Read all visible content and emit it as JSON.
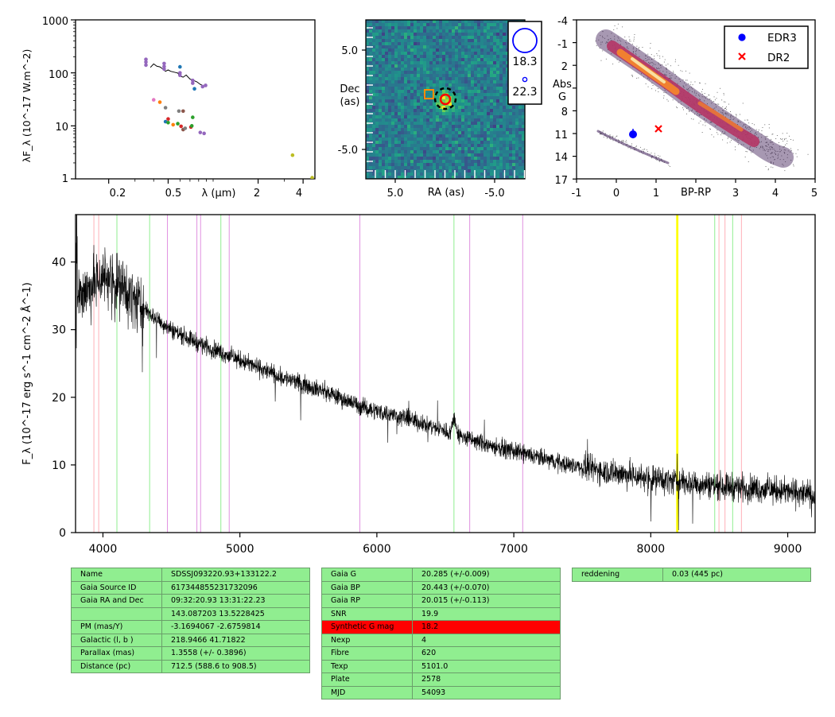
{
  "sed": {
    "ylabel": "λF_λ (10^-17 W.m^-2)",
    "xlabel": "λ (μm)",
    "y_ticks": [
      "1",
      "10",
      "100",
      "1000"
    ],
    "x_ticks": [
      "0.2",
      "0.5",
      "2",
      "4"
    ],
    "xscale": "log",
    "yscale": "log",
    "xlim": [
      0.12,
      4.8
    ],
    "ylim": [
      1,
      1000
    ],
    "model": [
      [
        0.38,
        125
      ],
      [
        0.4,
        130
      ],
      [
        0.42,
        128
      ],
      [
        0.44,
        122
      ],
      [
        0.46,
        118
      ],
      [
        0.48,
        112
      ],
      [
        0.5,
        108
      ],
      [
        0.52,
        106
      ],
      [
        0.55,
        102
      ],
      [
        0.58,
        96
      ],
      [
        0.6,
        92
      ],
      [
        0.63,
        87
      ],
      [
        0.66,
        82
      ],
      [
        0.7,
        76
      ],
      [
        0.74,
        70
      ],
      [
        0.78,
        66
      ],
      [
        0.82,
        62
      ],
      [
        0.86,
        58
      ]
    ],
    "points": [
      {
        "x": 0.355,
        "y": 180,
        "color": "#9467bd"
      },
      {
        "x": 0.355,
        "y": 160,
        "color": "#9467bd"
      },
      {
        "x": 0.355,
        "y": 140,
        "color": "#9467bd"
      },
      {
        "x": 0.47,
        "y": 150,
        "color": "#9467bd"
      },
      {
        "x": 0.47,
        "y": 132,
        "color": "#9467bd"
      },
      {
        "x": 0.47,
        "y": 118,
        "color": "#9467bd"
      },
      {
        "x": 0.6,
        "y": 130,
        "color": "#1f77b4"
      },
      {
        "x": 0.6,
        "y": 100,
        "color": "#9467bd"
      },
      {
        "x": 0.6,
        "y": 90,
        "color": "#9467bd"
      },
      {
        "x": 0.73,
        "y": 72,
        "color": "#9467bd"
      },
      {
        "x": 0.73,
        "y": 64,
        "color": "#9467bd"
      },
      {
        "x": 0.75,
        "y": 50,
        "color": "#1f77b4"
      },
      {
        "x": 0.85,
        "y": 55,
        "color": "#9467bd"
      },
      {
        "x": 0.89,
        "y": 58,
        "color": "#9467bd"
      },
      {
        "x": 0.4,
        "y": 31,
        "color": "#e377c2"
      },
      {
        "x": 0.44,
        "y": 28,
        "color": "#ff7f0e"
      },
      {
        "x": 0.48,
        "y": 22,
        "color": "#7f7f7f"
      },
      {
        "x": 0.59,
        "y": 19,
        "color": "#7f7f7f"
      },
      {
        "x": 0.63,
        "y": 19,
        "color": "#8c564b"
      },
      {
        "x": 0.48,
        "y": 12,
        "color": "#1f77b4"
      },
      {
        "x": 0.5,
        "y": 13.5,
        "color": "#d62728"
      },
      {
        "x": 0.5,
        "y": 11.5,
        "color": "#2ca02c"
      },
      {
        "x": 0.54,
        "y": 10.5,
        "color": "#ff7f0e"
      },
      {
        "x": 0.58,
        "y": 11,
        "color": "#2ca02c"
      },
      {
        "x": 0.61,
        "y": 9.8,
        "color": "#d62728"
      },
      {
        "x": 0.63,
        "y": 8.5,
        "color": "#8c564b"
      },
      {
        "x": 0.65,
        "y": 9,
        "color": "#7f7f7f"
      },
      {
        "x": 0.71,
        "y": 9.5,
        "color": "#d62728"
      },
      {
        "x": 0.72,
        "y": 10,
        "color": "#2ca02c"
      },
      {
        "x": 0.73,
        "y": 14.5,
        "color": "#2ca02c"
      },
      {
        "x": 0.82,
        "y": 7.5,
        "color": "#9467bd"
      },
      {
        "x": 0.87,
        "y": 7.2,
        "color": "#9467bd"
      },
      {
        "x": 3.4,
        "y": 2.8,
        "color": "#bcbd22"
      },
      {
        "x": 4.6,
        "y": 1.05,
        "color": "#bcbd22"
      }
    ]
  },
  "image_panel": {
    "ylabel_line1": "Dec",
    "ylabel_line2": "(as)",
    "xlabel": "RA (as)",
    "y_ticks": [
      "5.0",
      "-5.0"
    ],
    "x_ticks": [
      "5.0",
      "-5.0"
    ],
    "legend_mags": [
      "18.3",
      "22.3"
    ]
  },
  "hr": {
    "ylabel_line1": "Abs",
    "ylabel_line2": "G",
    "xlabel": "BP-RP",
    "y_ticks": [
      "-4",
      "-1",
      "2",
      "5",
      "8",
      "11",
      "14",
      "17"
    ],
    "x_ticks": [
      "-1",
      "0",
      "1",
      "2",
      "3",
      "4",
      "5"
    ],
    "legend": [
      {
        "label": "EDR3",
        "marker": "circle",
        "color": "#0000ff"
      },
      {
        "label": "DR2",
        "marker": "x",
        "color": "#ff0000"
      }
    ],
    "edr3": {
      "bp_rp": 0.43,
      "absg": 11.0
    },
    "dr2": {
      "bp_rp": 1.06,
      "absg": 10.2
    }
  },
  "chart_data": {
    "type": "line",
    "xlabel": "",
    "ylabel": "F_λ (10^-17 erg s^-1 cm^-2 Å^-1)",
    "xlim": [
      3800,
      9200
    ],
    "ylim": [
      0,
      47
    ],
    "x_ticks": [
      "4000",
      "5000",
      "6000",
      "7000",
      "8000",
      "9000"
    ],
    "y_ticks": [
      "0",
      "10",
      "20",
      "30",
      "40"
    ],
    "continuum": [
      [
        3800,
        35
      ],
      [
        3900,
        36
      ],
      [
        4000,
        38
      ],
      [
        4100,
        37
      ],
      [
        4200,
        35
      ],
      [
        4300,
        33
      ],
      [
        4500,
        30
      ],
      [
        4700,
        28
      ],
      [
        5000,
        25.5
      ],
      [
        5300,
        23
      ],
      [
        5600,
        21
      ],
      [
        5900,
        18.5
      ],
      [
        6200,
        17
      ],
      [
        6500,
        15
      ],
      [
        6800,
        13
      ],
      [
        7100,
        11.5
      ],
      [
        7400,
        10
      ],
      [
        7700,
        9
      ],
      [
        8000,
        8
      ],
      [
        8300,
        7.3
      ],
      [
        8600,
        6.8
      ],
      [
        8900,
        6.3
      ],
      [
        9200,
        5.5
      ]
    ],
    "features": [
      {
        "x": 6565,
        "y": 17
      }
    ],
    "line_markers": [
      {
        "x": 3934,
        "color": "#ffb0b8"
      },
      {
        "x": 3969,
        "color": "#ffb0b8"
      },
      {
        "x": 4102,
        "color": "#90ee90"
      },
      {
        "x": 4341,
        "color": "#90ee90"
      },
      {
        "x": 4471,
        "color": "#e090e0"
      },
      {
        "x": 4686,
        "color": "#e090e0"
      },
      {
        "x": 4713,
        "color": "#e090e0"
      },
      {
        "x": 4861,
        "color": "#90ee90"
      },
      {
        "x": 4922,
        "color": "#e090e0"
      },
      {
        "x": 5876,
        "color": "#e090e0"
      },
      {
        "x": 6563,
        "color": "#90ee90"
      },
      {
        "x": 6678,
        "color": "#e090e0"
      },
      {
        "x": 7065,
        "color": "#e090e0"
      },
      {
        "x": 8189,
        "color": "#ffff00"
      },
      {
        "x": 8194,
        "color": "#ffff00"
      },
      {
        "x": 8198,
        "color": "#ffff00"
      },
      {
        "x": 8467,
        "color": "#90ee90"
      },
      {
        "x": 8498,
        "color": "#ffb0b8"
      },
      {
        "x": 8542,
        "color": "#ffb0b8"
      },
      {
        "x": 8598,
        "color": "#90ee90"
      },
      {
        "x": 8662,
        "color": "#ffb0b8"
      }
    ]
  },
  "tables": {
    "t1": [
      [
        "Name",
        "SDSSJ093220.93+133122.2"
      ],
      [
        "Gaia Source ID",
        "617344855231732096"
      ],
      [
        "Gaia RA and Dec",
        "09:32:20.93    13:31:22.23"
      ],
      [
        "",
        "143.087203    13.5228425"
      ],
      [
        "PM (mas/Y)",
        "-3.1694067    -2.6759814"
      ],
      [
        "Galactic (l, b )",
        "218.9466    41.71822"
      ],
      [
        "Parallax (mas)",
        "1.3558 (+/- 0.3896)"
      ],
      [
        "Distance (pc)",
        "712.5 (588.6 to 908.5)"
      ]
    ],
    "t2": [
      [
        "Gaia G",
        "20.285 (+/-0.009)"
      ],
      [
        "Gaia BP",
        "20.443 (+/-0.070)"
      ],
      [
        "Gaia RP",
        "20.015 (+/-0.113)"
      ],
      [
        "SNR",
        "19.9"
      ],
      [
        "Synthetic G mag",
        "18.2"
      ],
      [
        "Nexp",
        "4"
      ],
      [
        "Fibre",
        "620"
      ],
      [
        "Texp",
        "5101.0"
      ],
      [
        "Plate",
        "2578"
      ],
      [
        "MJD",
        "54093"
      ]
    ],
    "t2_highlight_row": 4,
    "t3": [
      [
        "reddening",
        "0.03 (445 pc)"
      ]
    ],
    "highlight_color": "#ff0000",
    "cell_color": "#90ee90"
  }
}
